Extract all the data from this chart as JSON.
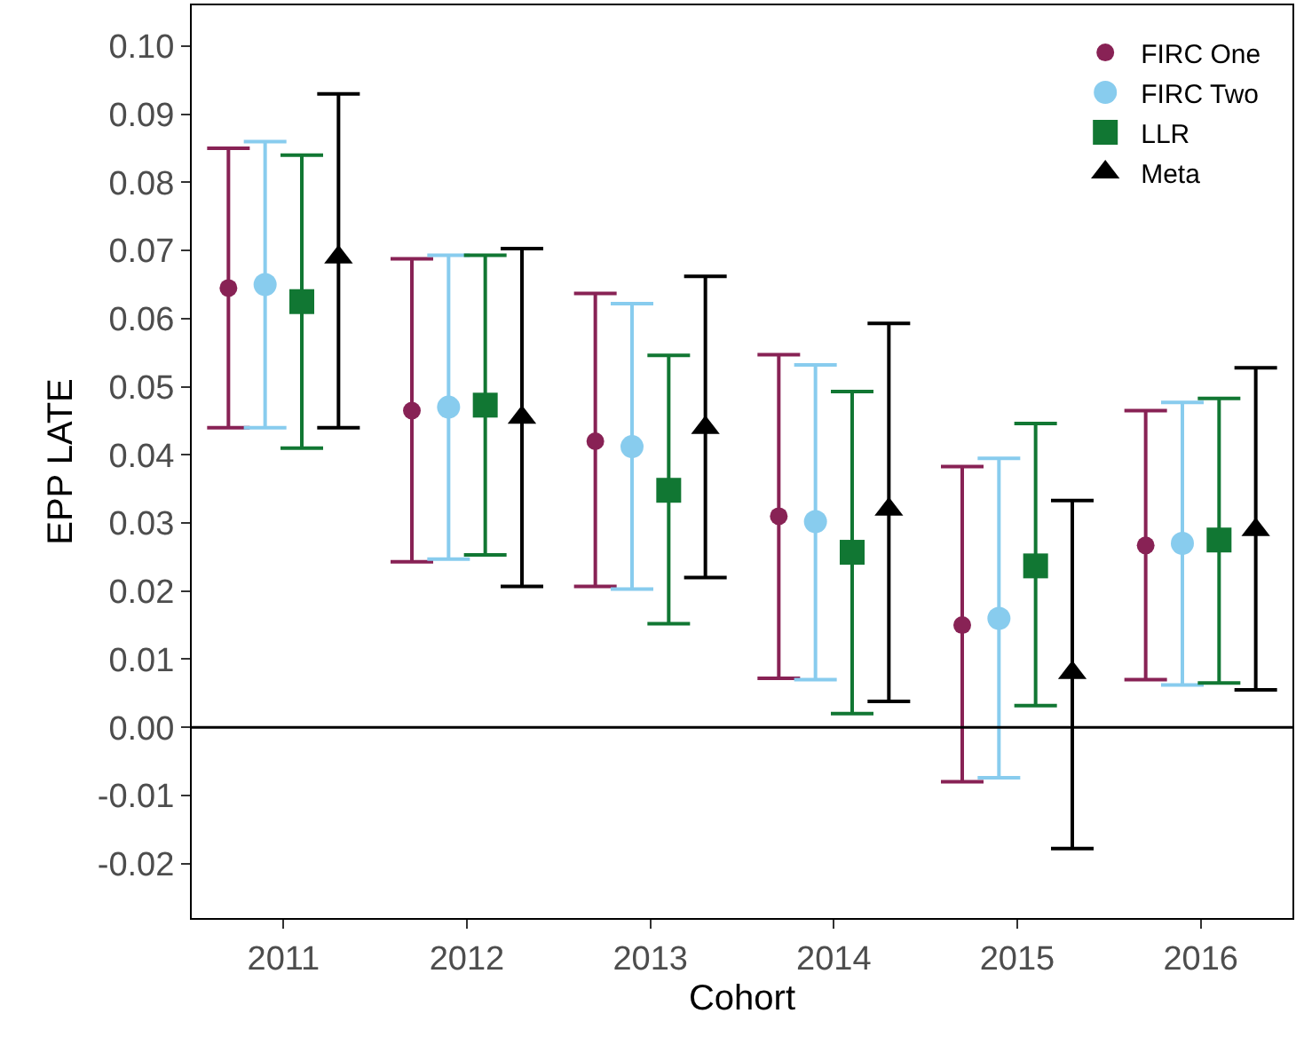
{
  "chart_data": {
    "type": "scatter",
    "xlabel": "Cohort",
    "ylabel": "EPP LATE",
    "categories": [
      "2011",
      "2012",
      "2013",
      "2014",
      "2015",
      "2016"
    ],
    "series": [
      {
        "name": "FIRC One",
        "color": "#882255",
        "marker": "circle",
        "values": [
          0.0645,
          0.0465,
          0.042,
          0.031,
          0.015,
          0.0267
        ],
        "errors": [
          [
            0.044,
            0.085
          ],
          [
            0.0243,
            0.0688
          ],
          [
            0.0207,
            0.0637
          ],
          [
            0.0072,
            0.0547
          ],
          [
            -0.008,
            0.0383
          ],
          [
            0.007,
            0.0465
          ]
        ]
      },
      {
        "name": "FIRC Two",
        "color": "#88ccee",
        "marker": "circle",
        "values": [
          0.065,
          0.047,
          0.0412,
          0.0302,
          0.016,
          0.027
        ],
        "errors": [
          [
            0.044,
            0.086
          ],
          [
            0.0247,
            0.0693
          ],
          [
            0.0203,
            0.0622
          ],
          [
            0.007,
            0.0532
          ],
          [
            -0.0074,
            0.0395
          ],
          [
            0.0062,
            0.0477
          ]
        ]
      },
      {
        "name": "LLR",
        "color": "#117733",
        "marker": "square",
        "values": [
          0.0625,
          0.0473,
          0.0348,
          0.0257,
          0.0237,
          0.0275
        ],
        "errors": [
          [
            0.041,
            0.084
          ],
          [
            0.0253,
            0.0693
          ],
          [
            0.0152,
            0.0546
          ],
          [
            0.002,
            0.0493
          ],
          [
            0.0032,
            0.0446
          ],
          [
            0.0065,
            0.0483
          ]
        ]
      },
      {
        "name": "Meta",
        "color": "#000000",
        "marker": "triangle",
        "values": [
          0.069,
          0.0455,
          0.044,
          0.032,
          0.008,
          0.029
        ],
        "errors": [
          [
            0.044,
            0.093
          ],
          [
            0.0207,
            0.0703
          ],
          [
            0.022,
            0.0662
          ],
          [
            0.0038,
            0.0593
          ],
          [
            -0.0178,
            0.0333
          ],
          [
            0.0055,
            0.0528
          ]
        ]
      }
    ],
    "ylim": [
      -0.028,
      0.106
    ],
    "yticks": [
      {
        "value": -0.02,
        "label": "-0.02"
      },
      {
        "value": -0.01,
        "label": "-0.01"
      },
      {
        "value": 0,
        "label": "0.00"
      },
      {
        "value": 0.01,
        "label": "0.01"
      },
      {
        "value": 0.02,
        "label": "0.02"
      },
      {
        "value": 0.03,
        "label": "0.03"
      },
      {
        "value": 0.04,
        "label": "0.04"
      },
      {
        "value": 0.05,
        "label": "0.05"
      },
      {
        "value": 0.06,
        "label": "0.06"
      },
      {
        "value": 0.07,
        "label": "0.07"
      },
      {
        "value": 0.08,
        "label": "0.08"
      },
      {
        "value": 0.09,
        "label": "0.09"
      },
      {
        "value": 0.1,
        "label": "0.10"
      }
    ],
    "ref_lines": [
      {
        "axis": "y",
        "value": 0,
        "color": "#000000"
      }
    ],
    "grid": false,
    "legend": "top right"
  }
}
